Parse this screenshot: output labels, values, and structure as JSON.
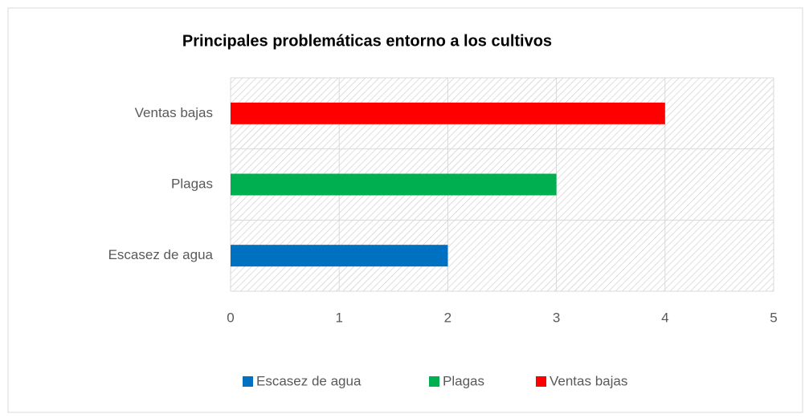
{
  "chart_data": {
    "type": "bar",
    "orientation": "horizontal",
    "title": "Principales problemáticas entorno a los cultivos",
    "categories": [
      "Escasez de agua",
      "Plagas",
      "Ventas bajas"
    ],
    "series": [
      {
        "name": "Escasez de agua",
        "color": "#0070c0",
        "values": [
          2,
          null,
          null
        ]
      },
      {
        "name": "Plagas",
        "color": "#00b050",
        "values": [
          null,
          3,
          null
        ]
      },
      {
        "name": "Ventas bajas",
        "color": "#ff0000",
        "values": [
          null,
          null,
          4
        ]
      }
    ],
    "xlim": [
      0,
      5
    ],
    "xticks": [
      0,
      1,
      2,
      3,
      4,
      5
    ],
    "grid": true,
    "legend": "bottom"
  }
}
